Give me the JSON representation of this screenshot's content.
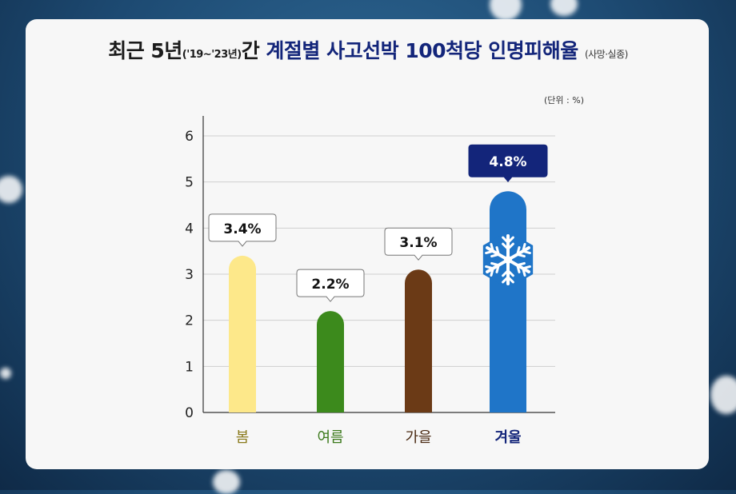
{
  "title": {
    "part1": "최근 5년",
    "period": "('19~'23년)",
    "part2": "간",
    "accent": "계절별 사고선박 100척당 인명피해율",
    "note": "(사망·실종)"
  },
  "unit_label": "(단위 : %)",
  "colors": {
    "background": "#1d4a72",
    "card": "#f7f7f7",
    "accent_title": "#13257a"
  },
  "chart_data": {
    "type": "bar",
    "categories": [
      "봄",
      "여름",
      "가을",
      "겨울"
    ],
    "values": [
      3.4,
      2.2,
      3.1,
      4.8
    ],
    "value_labels": [
      "3.4%",
      "2.2%",
      "3.1%",
      "4.8%"
    ],
    "bar_colors": [
      "#fde88a",
      "#3c8a1c",
      "#6b3a16",
      "#1f75c8"
    ],
    "category_colors": [
      "#8a7a1c",
      "#3c7a1c",
      "#4a2a12",
      "#13257a"
    ],
    "highlight_index": 3,
    "highlight_icon": "snowflake-icon",
    "ylim": [
      0,
      6
    ],
    "yticks": [
      0,
      1,
      2,
      3,
      4,
      5,
      6
    ],
    "grid": true,
    "xlabel": "",
    "ylabel": ""
  }
}
